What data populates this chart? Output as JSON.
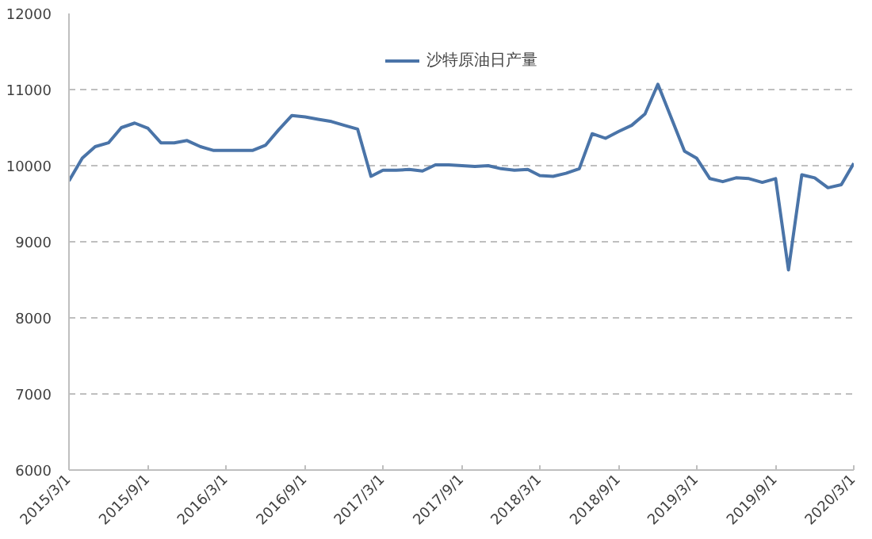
{
  "chart_data": {
    "type": "line",
    "x": [
      "2015-03",
      "2015-04",
      "2015-05",
      "2015-06",
      "2015-07",
      "2015-08",
      "2015-09",
      "2015-10",
      "2015-11",
      "2015-12",
      "2016-01",
      "2016-02",
      "2016-03",
      "2016-04",
      "2016-05",
      "2016-06",
      "2016-07",
      "2016-08",
      "2016-09",
      "2016-10",
      "2016-11",
      "2016-12",
      "2017-01",
      "2017-02",
      "2017-03",
      "2017-04",
      "2017-05",
      "2017-06",
      "2017-07",
      "2017-08",
      "2017-09",
      "2017-10",
      "2017-11",
      "2017-12",
      "2018-01",
      "2018-02",
      "2018-03",
      "2018-04",
      "2018-05",
      "2018-06",
      "2018-07",
      "2018-08",
      "2018-09",
      "2018-10",
      "2018-11",
      "2018-12",
      "2019-01",
      "2019-02",
      "2019-03",
      "2019-04",
      "2019-05",
      "2019-06",
      "2019-07",
      "2019-08",
      "2019-09",
      "2019-10",
      "2019-11",
      "2019-12",
      "2020-01",
      "2020-02",
      "2020-03"
    ],
    "series": [
      {
        "name": "沙特原油日产量",
        "color": "#4a74a8",
        "values": [
          9800,
          10100,
          10250,
          10300,
          10500,
          10560,
          10490,
          10300,
          10300,
          10330,
          10250,
          10200,
          10200,
          10200,
          10200,
          10270,
          10470,
          10660,
          10640,
          10610,
          10580,
          10530,
          10480,
          9860,
          9940,
          9940,
          9950,
          9930,
          10010,
          10010,
          10000,
          9990,
          10000,
          9960,
          9940,
          9950,
          9870,
          9860,
          9900,
          9960,
          10420,
          10360,
          10450,
          10530,
          10680,
          11070,
          10630,
          10190,
          10100,
          9830,
          9790,
          9840,
          9830,
          9780,
          9830,
          8630,
          9880,
          9840,
          9710,
          9750,
          10030
        ]
      }
    ],
    "xlim": [
      "2015-03-01",
      "2020-03-01"
    ],
    "xticks": [
      {
        "value": "2015-03-01",
        "label": "2015/3/1"
      },
      {
        "value": "2015-09-01",
        "label": "2015/9/1"
      },
      {
        "value": "2016-03-01",
        "label": "2016/3/1"
      },
      {
        "value": "2016-09-01",
        "label": "2016/9/1"
      },
      {
        "value": "2017-03-01",
        "label": "2017/3/1"
      },
      {
        "value": "2017-09-01",
        "label": "2017/9/1"
      },
      {
        "value": "2018-03-01",
        "label": "2018/3/1"
      },
      {
        "value": "2018-09-01",
        "label": "2018/9/1"
      },
      {
        "value": "2019-03-01",
        "label": "2019/3/1"
      },
      {
        "value": "2019-09-01",
        "label": "2019/9/1"
      },
      {
        "value": "2020-03-01",
        "label": "2020/3/1"
      }
    ],
    "ylim": [
      6000,
      12000
    ],
    "yticks": [
      6000,
      7000,
      8000,
      9000,
      10000,
      11000,
      12000
    ],
    "grid": "y",
    "legend": "top",
    "line_style": "solid"
  }
}
